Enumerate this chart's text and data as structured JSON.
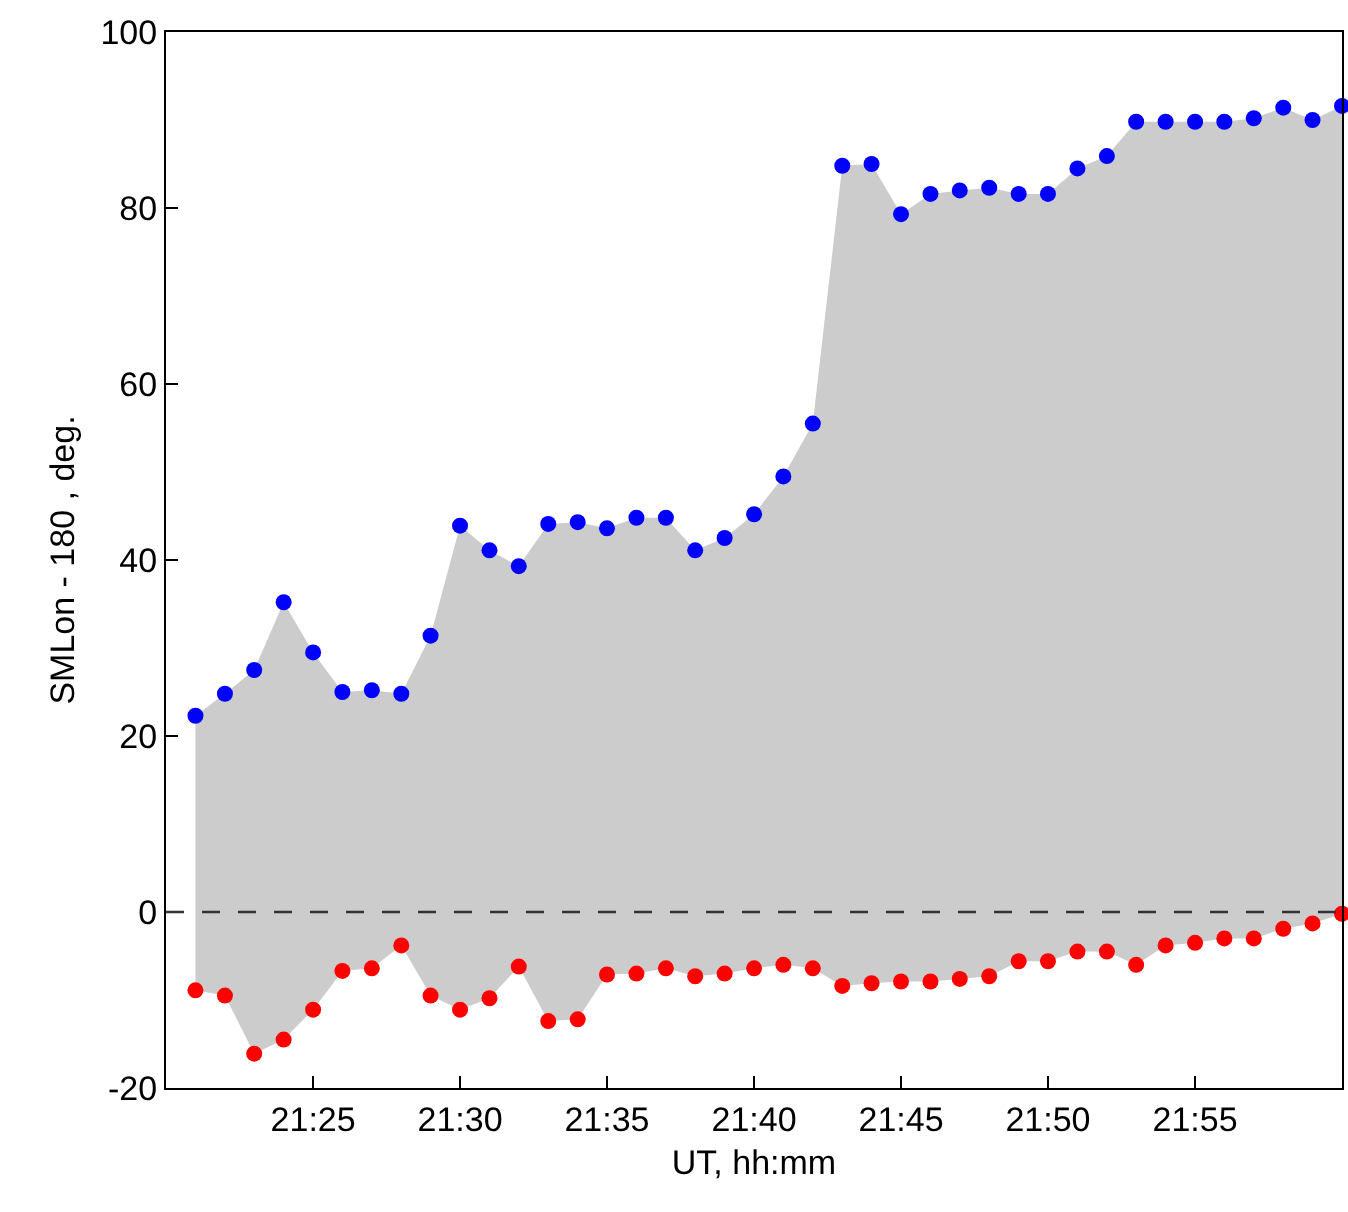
{
  "chart_data": {
    "type": "scatter",
    "xlabel": "UT, hh:mm",
    "ylabel": "SMLon - 180 , deg.",
    "x": [
      21.35,
      21.3667,
      21.3833,
      21.4,
      21.4167,
      21.4333,
      21.45,
      21.4667,
      21.4833,
      21.5,
      21.5167,
      21.5333,
      21.55,
      21.5667,
      21.5833,
      21.6,
      21.6167,
      21.6333,
      21.65,
      21.6667,
      21.6833,
      21.7,
      21.7167,
      21.7333,
      21.75,
      21.7667,
      21.7833,
      21.8,
      21.8167,
      21.8333,
      21.85,
      21.8667,
      21.8833,
      21.9,
      21.9167,
      21.9333,
      21.95,
      21.9667,
      21.9833,
      22.0
    ],
    "series": [
      {
        "color": "#0000ff",
        "lower": [
          -8.9,
          -9.5,
          -16.1,
          -14.5,
          -11.1,
          -6.7,
          -6.4,
          -3.8,
          -9.5,
          -11.1,
          -9.8,
          -6.2,
          -12.4,
          -12.2,
          -7.1,
          -7.0,
          -6.4,
          -7.3,
          -7.0,
          -6.4,
          -6.0,
          -6.4,
          -8.4,
          -8.1,
          -7.9,
          -7.9,
          -7.6,
          -7.3,
          -5.6,
          -5.6,
          -4.5,
          -4.5,
          -6.0,
          -3.8,
          -3.5,
          -3.0,
          -3.0,
          -1.9,
          -1.3,
          -0.2
        ],
        "upper": [
          22.3,
          24.8,
          27.5,
          35.2,
          29.5,
          25.0,
          25.2,
          24.8,
          31.4,
          43.9,
          41.1,
          39.3,
          44.1,
          44.3,
          43.6,
          44.8,
          44.8,
          41.1,
          42.5,
          45.2,
          49.5,
          55.5,
          84.8,
          85.0,
          79.3,
          81.6,
          82.0,
          82.3,
          81.6,
          81.6,
          84.5,
          85.9,
          89.8,
          89.8,
          89.8,
          89.8,
          90.2,
          91.4,
          90.0,
          91.6
        ],
        "values": [
          22.3,
          24.8,
          27.5,
          35.2,
          29.5,
          25.0,
          25.2,
          24.8,
          31.4,
          43.9,
          41.1,
          39.3,
          44.1,
          44.3,
          43.6,
          44.8,
          44.8,
          41.1,
          42.5,
          45.2,
          49.5,
          55.5,
          84.8,
          85.0,
          79.3,
          81.6,
          82.0,
          82.3,
          81.6,
          81.6,
          84.5,
          85.9,
          89.8,
          89.8,
          89.8,
          89.8,
          90.2,
          91.4,
          90.0,
          91.6
        ]
      },
      {
        "color": "#ff0000",
        "values": [
          -8.9,
          -9.5,
          -16.1,
          -14.5,
          -11.1,
          -6.7,
          -6.4,
          -3.8,
          -9.5,
          -11.1,
          -9.8,
          -6.2,
          -12.4,
          -12.2,
          -7.1,
          -7.0,
          -6.4,
          -7.3,
          -7.0,
          -6.4,
          -6.0,
          -6.4,
          -8.4,
          -8.1,
          -7.9,
          -7.9,
          -7.6,
          -7.3,
          -5.6,
          -5.6,
          -4.5,
          -4.5,
          -6.0,
          -3.8,
          -3.5,
          -3.0,
          -3.0,
          -1.9,
          -1.3,
          -0.2
        ]
      }
    ],
    "xlim": [
      21.3333,
      22.0
    ],
    "xticks": [
      {
        "value": 21.4167,
        "label": "21:25"
      },
      {
        "value": 21.5,
        "label": "21:30"
      },
      {
        "value": 21.5833,
        "label": "21:35"
      },
      {
        "value": 21.6667,
        "label": "21:40"
      },
      {
        "value": 21.75,
        "label": "21:45"
      },
      {
        "value": 21.8333,
        "label": "21:50"
      },
      {
        "value": 21.9167,
        "label": "21:55"
      }
    ],
    "ylim": [
      -20,
      100
    ],
    "yticks": [
      -20,
      0,
      20,
      40,
      60,
      80,
      100
    ],
    "ref_lines": [
      {
        "axis": "y",
        "value": 0,
        "color": "#333333",
        "line_style": "dashed"
      }
    ],
    "marker": "circle"
  }
}
